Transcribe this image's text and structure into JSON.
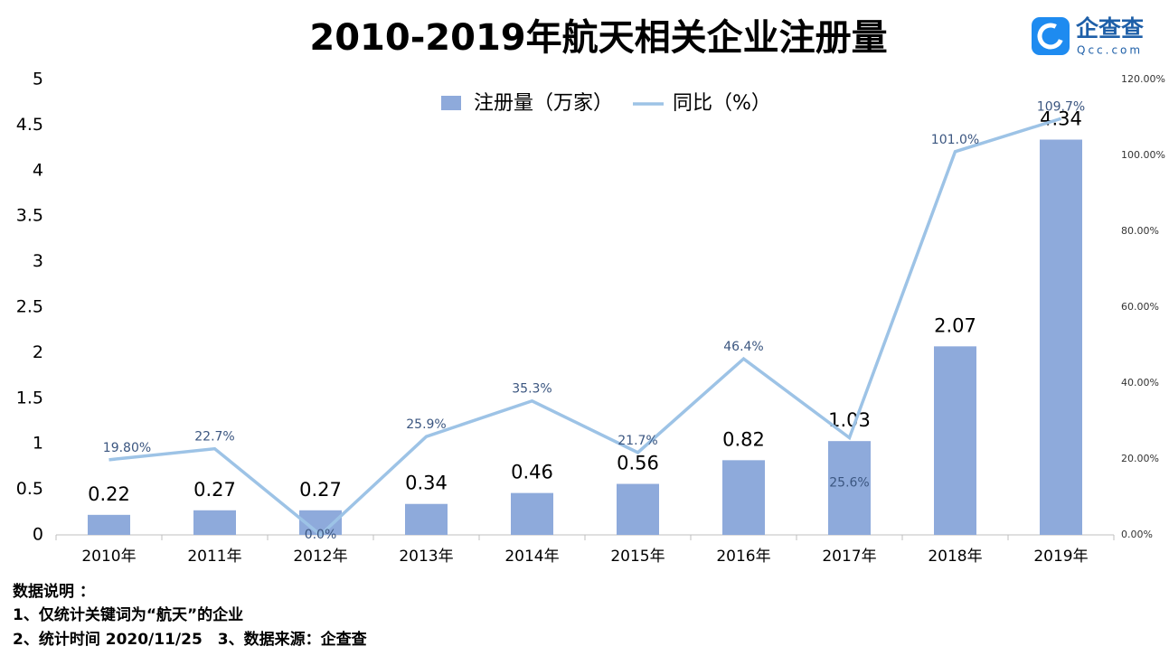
{
  "chart_data": {
    "type": "bar",
    "title": "2010-2019年航天相关企业注册量",
    "categories": [
      "2010年",
      "2011年",
      "2012年",
      "2013年",
      "2014年",
      "2015年",
      "2016年",
      "2017年",
      "2018年",
      "2019年"
    ],
    "series": [
      {
        "name": "注册量（万家）",
        "type": "bar",
        "color": "#8eaadb",
        "values": [
          0.22,
          0.27,
          0.27,
          0.34,
          0.46,
          0.56,
          0.82,
          1.03,
          2.07,
          4.34
        ]
      },
      {
        "name": "同比（%）",
        "type": "line",
        "axis": "y2",
        "color": "#9dc3e6",
        "values": [
          19.8,
          22.7,
          0,
          25.9,
          35.3,
          21.7,
          46.4,
          25.6,
          101.0,
          109.7
        ],
        "value_labels": [
          "19.80%",
          "22.7%",
          "0.0%",
          "25.9%",
          "35.3%",
          "21.7%",
          "46.4%",
          "25.6%",
          "101.0%",
          "109.7%"
        ]
      }
    ],
    "ylim": [
      0,
      5
    ],
    "yticks": [
      0,
      0.5,
      1,
      1.5,
      2,
      2.5,
      3,
      3.5,
      4,
      4.5,
      5
    ],
    "y2lim": [
      0,
      120
    ],
    "y2ticks": [
      {
        "value": 0,
        "label": "0.00%"
      },
      {
        "value": 20,
        "label": "20.00%"
      },
      {
        "value": 40,
        "label": "40.00%"
      },
      {
        "value": 60,
        "label": "60.00%"
      },
      {
        "value": 80,
        "label": "80.00%"
      },
      {
        "value": 100,
        "label": "100.00%"
      },
      {
        "value": 120,
        "label": "120.00%"
      }
    ],
    "legend": "top"
  },
  "logo": {
    "name": "企查查",
    "site": "Qcc.com"
  },
  "footnote": {
    "heading": "数据说明 ：",
    "line1": "1、仅统计关键词为“航天”的企业",
    "line2": "2、统计时间 2020/11/25　3、数据来源：企查查"
  }
}
